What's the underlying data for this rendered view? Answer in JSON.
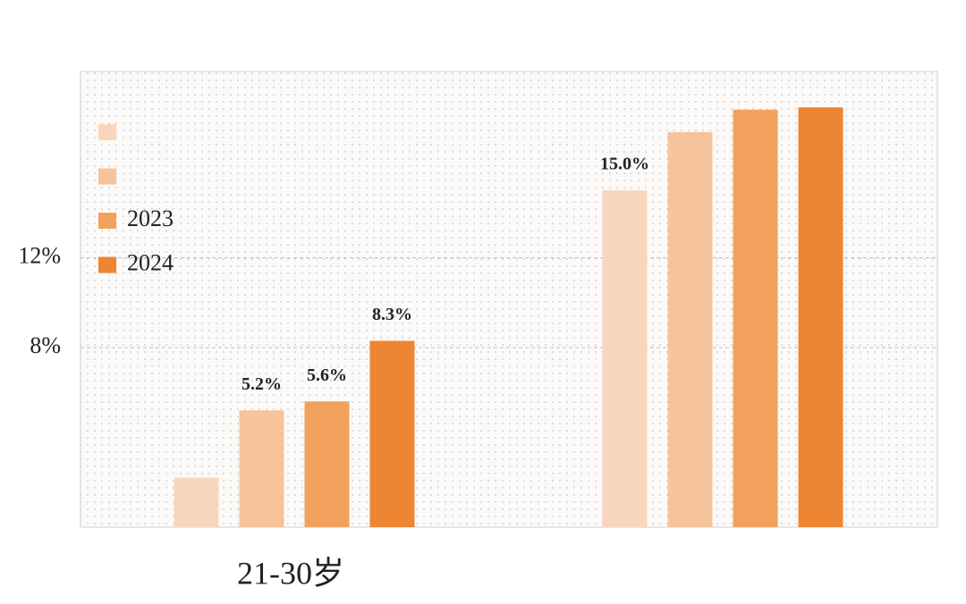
{
  "chart_data": {
    "type": "bar",
    "categories": [
      "21-30岁",
      null
    ],
    "series": [
      {
        "name": null,
        "color": "#f8d5bd",
        "values": [
          2.2,
          15.0
        ],
        "value_labels": [
          null,
          "15.0%"
        ]
      },
      {
        "name": null,
        "color": "#f7c39a",
        "values": [
          5.2,
          17.6
        ],
        "value_labels": [
          "5.2%",
          null
        ]
      },
      {
        "name": "2023",
        "color": "#f2a15c",
        "values": [
          5.6,
          18.6
        ],
        "value_labels": [
          "5.6%",
          null
        ]
      },
      {
        "name": "2024",
        "color": "#ee8533",
        "values": [
          8.3,
          18.7
        ],
        "value_labels": [
          "8.3%",
          null
        ]
      }
    ],
    "ylim": [
      0,
      20.3
    ],
    "yticks": [
      {
        "value": 8,
        "label": "8%"
      },
      {
        "value": 12,
        "label": "12%"
      }
    ],
    "grid": true
  }
}
